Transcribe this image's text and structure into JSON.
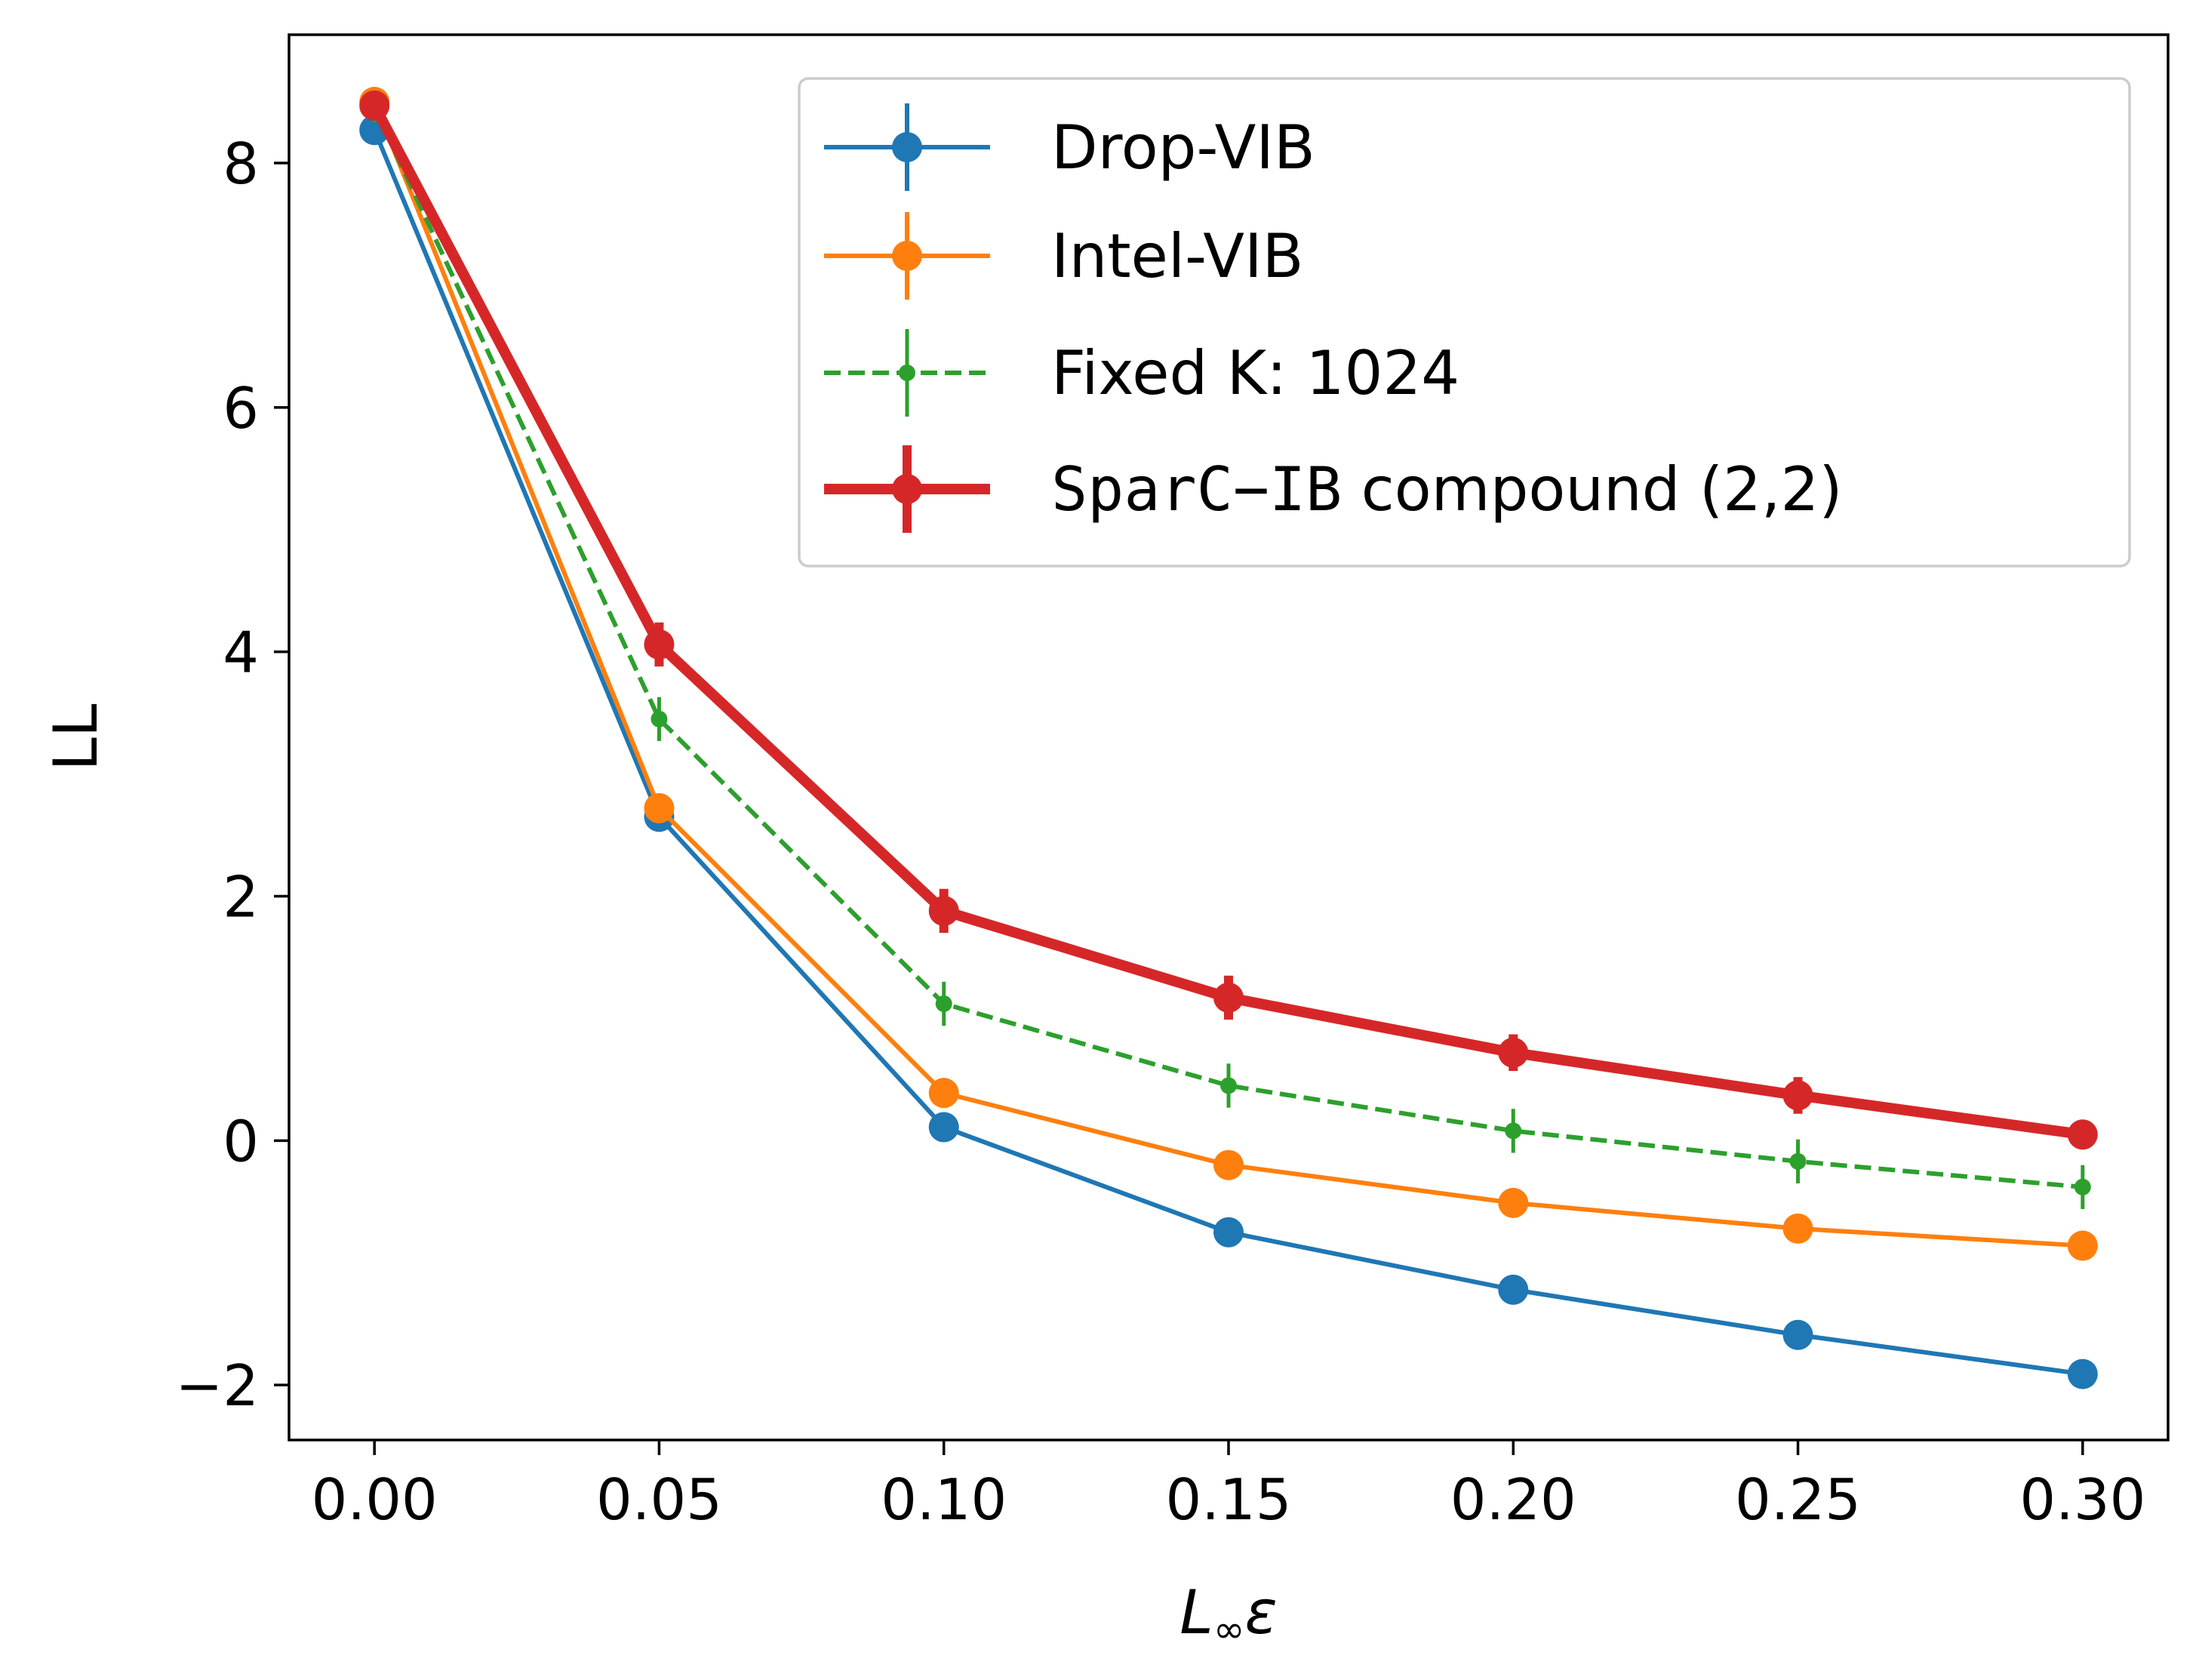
{
  "chart_data": {
    "type": "line",
    "title": "",
    "xlabel": "L∞ε",
    "xlabel_parts": {
      "base": "L",
      "subscript": "∞",
      "symbol": "ε"
    },
    "ylabel": "LL",
    "x": [
      0.0,
      0.05,
      0.1,
      0.15,
      0.2,
      0.25,
      0.3
    ],
    "xticks": [
      "0.00",
      "0.05",
      "0.10",
      "0.15",
      "0.20",
      "0.25",
      "0.30"
    ],
    "yticks": [
      "−2",
      "0",
      "2",
      "4",
      "6",
      "8"
    ],
    "ytick_values": [
      -2,
      0,
      2,
      4,
      6,
      8
    ],
    "xlim": [
      -0.015,
      0.315
    ],
    "ylim": [
      -2.45,
      9.05
    ],
    "grid": false,
    "legend_position": "top-right",
    "series": [
      {
        "name": "Drop-VIB",
        "color": "#1f77b4",
        "style": "solid-thin-large-marker",
        "values": [
          8.27,
          2.65,
          0.11,
          -0.75,
          -1.22,
          -1.59,
          -1.91
        ],
        "errors": [
          0.05,
          0.05,
          0.05,
          0.05,
          0.05,
          0.05,
          0.05
        ]
      },
      {
        "name": "Intel-VIB",
        "color": "#ff7f0e",
        "style": "solid-thin-large-marker",
        "values": [
          8.5,
          2.72,
          0.39,
          -0.2,
          -0.51,
          -0.72,
          -0.86
        ],
        "errors": [
          0.05,
          0.05,
          0.05,
          0.05,
          0.05,
          0.05,
          0.05
        ]
      },
      {
        "name": "Fixed K: 1024",
        "color": "#2ca02c",
        "style": "dashed-small-marker",
        "values": [
          8.45,
          3.45,
          1.12,
          0.45,
          0.08,
          -0.17,
          -0.38
        ],
        "errors": [
          0.12,
          0.18,
          0.18,
          0.18,
          0.18,
          0.18,
          0.18
        ]
      },
      {
        "name": "SparC−IB compound (2,2)",
        "name_parts": {
          "mono": "SparC−IB",
          "rest": " compound (2,2)"
        },
        "color": "#d62728",
        "style": "solid-thick-large-marker",
        "values": [
          8.47,
          4.06,
          1.88,
          1.17,
          0.72,
          0.37,
          0.05
        ],
        "errors": [
          0.12,
          0.18,
          0.18,
          0.18,
          0.15,
          0.15,
          0.1
        ]
      }
    ]
  }
}
